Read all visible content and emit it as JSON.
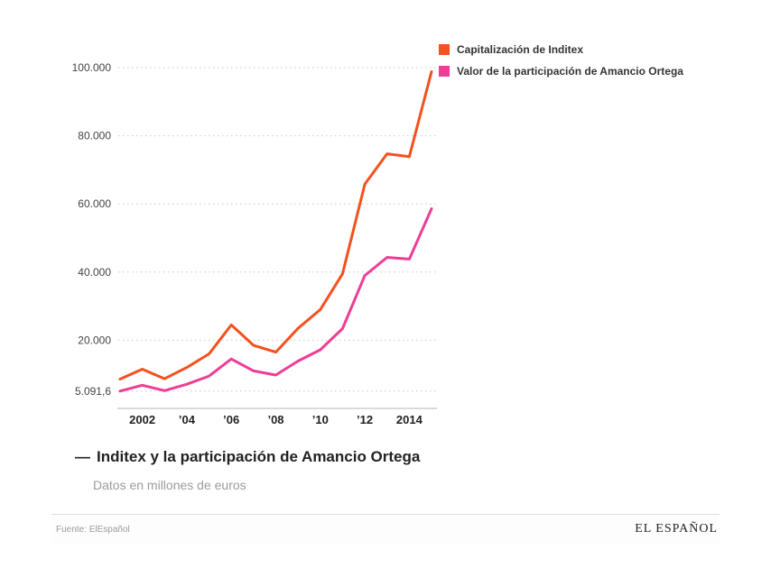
{
  "chart_data": {
    "type": "line",
    "x": [
      2001,
      2002,
      2003,
      2004,
      2005,
      2006,
      2007,
      2008,
      2009,
      2010,
      2011,
      2012,
      2013,
      2014,
      2015
    ],
    "xlim": [
      2001,
      2015
    ],
    "ylim": [
      0,
      100000
    ],
    "series": [
      {
        "name": "Capitalización de Inditex",
        "color": "#f4511e",
        "values": [
          8600,
          11500,
          8700,
          12000,
          16000,
          24500,
          18500,
          16500,
          23500,
          29000,
          39500,
          65800,
          74700,
          73900,
          98800
        ]
      },
      {
        "name": "Valor de la participación de Amancio Ortega",
        "color": "#ee3d96",
        "values": [
          5091.6,
          6800,
          5200,
          7100,
          9500,
          14500,
          11000,
          9800,
          13900,
          17200,
          23400,
          39000,
          44300,
          43800,
          58600
        ]
      }
    ],
    "yticks": [
      {
        "value": 100000,
        "label": "100.000"
      },
      {
        "value": 80000,
        "label": "80.000"
      },
      {
        "value": 60000,
        "label": "60.000"
      },
      {
        "value": 40000,
        "label": "40.000"
      },
      {
        "value": 20000,
        "label": "20.000"
      },
      {
        "value": 5091.6,
        "label": "5.091,6"
      }
    ],
    "xticks": [
      {
        "value": 2002,
        "label": "2002"
      },
      {
        "value": 2004,
        "label": "’04"
      },
      {
        "value": 2006,
        "label": "’06"
      },
      {
        "value": 2008,
        "label": "’08"
      },
      {
        "value": 2010,
        "label": "’10"
      },
      {
        "value": 2012,
        "label": "’12"
      },
      {
        "value": 2014,
        "label": "2014"
      }
    ],
    "grid": "horizontal-dotted",
    "legend_position": "top-right",
    "title": "Inditex y la participación de Amancio Ortega",
    "xlabel": "",
    "ylabel": "Datos en millones de euros"
  },
  "caption": {
    "dash": "—",
    "title": "Inditex y la participación de Amancio Ortega",
    "subtitle": "Datos en millones de euros"
  },
  "footer": {
    "source": "Fuente: ElEspañol",
    "brand": "EL ESPAÑOL"
  },
  "colors": {
    "inditex_line": "#f4511e",
    "ortega_line": "#ee3d96",
    "grid": "#c9c9c9",
    "axis": "#b5b5b5"
  }
}
